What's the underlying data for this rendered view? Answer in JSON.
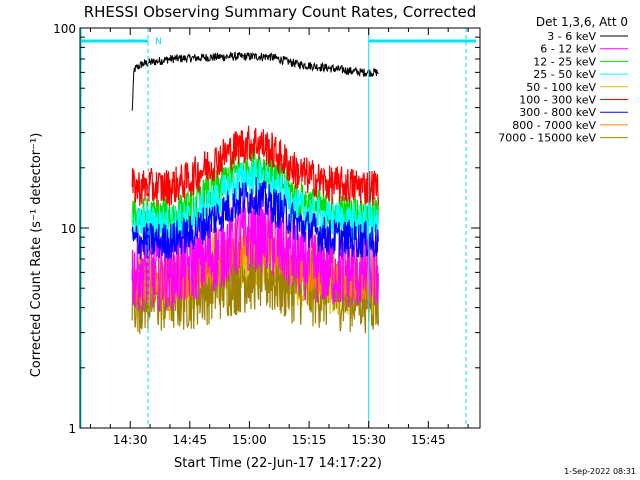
{
  "chart_data": {
    "type": "line",
    "title": "RHESSI Observing Summary Count Rates, Corrected",
    "xlabel": "Start Time (22-Jun-17 14:17:22)",
    "ylabel": "Corrected Count Rate (s⁻¹ detector⁻¹)",
    "x_ticks": [
      "14:30",
      "14:45",
      "15:00",
      "15:15",
      "15:30",
      "15:45"
    ],
    "x_tick_minutes": [
      30,
      45,
      60,
      75,
      90,
      105
    ],
    "xlim_minutes": [
      17.37,
      118.0
    ],
    "y_scale": "log",
    "ylim": [
      1,
      100
    ],
    "y_ticks": [
      {
        "value": 1,
        "label": "1"
      },
      {
        "value": 10,
        "label": "10"
      },
      {
        "value": 100,
        "label": "100"
      }
    ],
    "data_window_minutes": [
      30.5,
      92.5
    ],
    "legend_title": "Det 1,3,6, Att 0",
    "series": [
      {
        "name": "3 - 6 keV",
        "color": "#000000",
        "profile": [
          [
            30.5,
            38
          ],
          [
            31,
            62
          ],
          [
            33,
            66
          ],
          [
            40,
            70
          ],
          [
            55,
            72
          ],
          [
            65,
            72
          ],
          [
            72,
            66
          ],
          [
            80,
            63
          ],
          [
            88,
            60
          ],
          [
            92.5,
            60
          ]
        ]
      },
      {
        "name": "6 - 12 keV",
        "color": "#ff00ff",
        "profile": [
          [
            30.5,
            6
          ],
          [
            40,
            6
          ],
          [
            45,
            6.5
          ],
          [
            52,
            7.5
          ],
          [
            58,
            9
          ],
          [
            62,
            9.5
          ],
          [
            66,
            8.5
          ],
          [
            72,
            7
          ],
          [
            80,
            6.2
          ],
          [
            92.5,
            6
          ]
        ]
      },
      {
        "name": "12 - 25 keV",
        "color": "#00dd00",
        "profile": [
          [
            30.5,
            11.5
          ],
          [
            40,
            11.5
          ],
          [
            45,
            12.5
          ],
          [
            52,
            16
          ],
          [
            58,
            20
          ],
          [
            62,
            21
          ],
          [
            66,
            18.5
          ],
          [
            72,
            14
          ],
          [
            80,
            12
          ],
          [
            92.5,
            11.5
          ]
        ]
      },
      {
        "name": "25 - 50 keV",
        "color": "#00ffff",
        "profile": [
          [
            30.5,
            10.5
          ],
          [
            40,
            10.5
          ],
          [
            45,
            11
          ],
          [
            52,
            14
          ],
          [
            58,
            17.5
          ],
          [
            62,
            18
          ],
          [
            66,
            16
          ],
          [
            72,
            12.5
          ],
          [
            80,
            11
          ],
          [
            92.5,
            10.5
          ]
        ]
      },
      {
        "name": "50 - 100 keV",
        "color": "#e0c000",
        "profile": [
          [
            30.5,
            5.4
          ],
          [
            40,
            5.4
          ],
          [
            45,
            5.8
          ],
          [
            52,
            6.7
          ],
          [
            58,
            7.8
          ],
          [
            62,
            8
          ],
          [
            66,
            7.4
          ],
          [
            72,
            6.2
          ],
          [
            80,
            5.6
          ],
          [
            92.5,
            5.4
          ]
        ]
      },
      {
        "name": "100 - 300 keV",
        "color": "#ff0000",
        "profile": [
          [
            30.5,
            16
          ],
          [
            40,
            16
          ],
          [
            45,
            17.5
          ],
          [
            52,
            22
          ],
          [
            58,
            26
          ],
          [
            62,
            27
          ],
          [
            66,
            24
          ],
          [
            72,
            19
          ],
          [
            80,
            16.5
          ],
          [
            92.5,
            16
          ]
        ]
      },
      {
        "name": "300 - 800 keV",
        "color": "#0000ff",
        "profile": [
          [
            30.5,
            8.6
          ],
          [
            40,
            8.6
          ],
          [
            45,
            9.3
          ],
          [
            52,
            11.5
          ],
          [
            58,
            14
          ],
          [
            62,
            14.5
          ],
          [
            66,
            13
          ],
          [
            72,
            10.5
          ],
          [
            80,
            9
          ],
          [
            92.5,
            8.6
          ]
        ]
      },
      {
        "name": "800 - 7000 keV",
        "color": "#ff8000",
        "profile": [
          [
            30.5,
            5.2
          ],
          [
            40,
            5.2
          ],
          [
            45,
            5.6
          ],
          [
            52,
            6.6
          ],
          [
            58,
            8
          ],
          [
            62,
            8.3
          ],
          [
            66,
            7.6
          ],
          [
            72,
            6.2
          ],
          [
            80,
            5.5
          ],
          [
            92.5,
            5.2
          ]
        ]
      },
      {
        "name": "7000 - 15000 keV",
        "color": "#a08000",
        "profile": [
          [
            30.5,
            4.6
          ],
          [
            40,
            4.6
          ],
          [
            45,
            4.8
          ],
          [
            52,
            5.3
          ],
          [
            58,
            5.8
          ],
          [
            62,
            6
          ],
          [
            66,
            5.6
          ],
          [
            72,
            5.1
          ],
          [
            80,
            4.8
          ],
          [
            92.5,
            4.6
          ]
        ]
      }
    ],
    "annotations": {
      "night_label": "N",
      "night_intervals_minutes": [
        [
          17.37,
          34.5
        ],
        [
          90.0,
          117.0
        ]
      ],
      "saa_lines_minutes": [
        34.5,
        90.0,
        114.5
      ]
    }
  },
  "footer": {
    "timestamp": "1-Sep-2022 08:31"
  }
}
